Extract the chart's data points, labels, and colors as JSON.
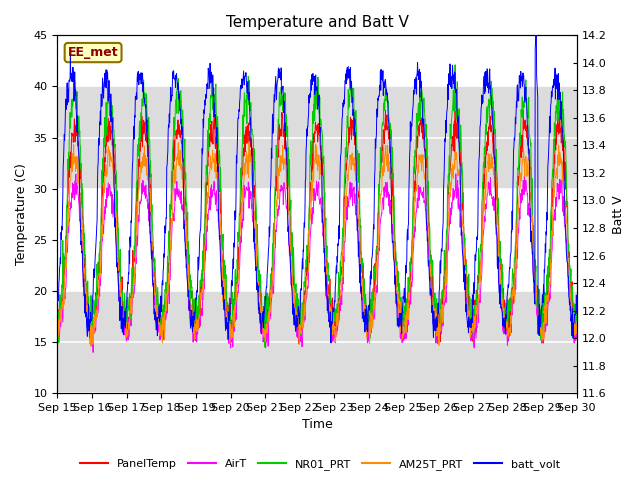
{
  "title": "Temperature and Batt V",
  "xlabel": "Time",
  "ylabel_left": "Temperature (C)",
  "ylabel_right": "Batt V",
  "left_ylim": [
    10,
    45
  ],
  "right_ylim": [
    11.6,
    14.2
  ],
  "left_yticks": [
    10,
    15,
    20,
    25,
    30,
    35,
    40,
    45
  ],
  "right_yticks": [
    11.6,
    11.8,
    12.0,
    12.2,
    12.4,
    12.6,
    12.8,
    13.0,
    13.2,
    13.4,
    13.6,
    13.8,
    14.0,
    14.2
  ],
  "annotation_text": "EE_met",
  "annotation_text_color": "#8B0000",
  "annotation_box_color": "#FFFFC0",
  "annotation_box_edge": "#8B7000",
  "bg_color": "#FFFFFF",
  "plot_bg_color": "#FFFFFF",
  "series_colors": {
    "PanelTemp": "#FF0000",
    "AirT": "#FF00FF",
    "NR01_PRT": "#00CC00",
    "AM25T_PRT": "#FF8C00",
    "batt_volt": "#0000FF"
  },
  "legend_entries": [
    "PanelTemp",
    "AirT",
    "NR01_PRT",
    "AM25T_PRT",
    "batt_volt"
  ],
  "x_tick_labels": [
    "Sep 15",
    "Sep 16",
    "Sep 17",
    "Sep 18",
    "Sep 19",
    "Sep 20",
    "Sep 21",
    "Sep 22",
    "Sep 23",
    "Sep 24",
    "Sep 25",
    "Sep 26",
    "Sep 27",
    "Sep 28",
    "Sep 29",
    "Sep 30"
  ],
  "num_days": 15,
  "points_per_day": 96,
  "seed": 42,
  "figsize": [
    6.4,
    4.8
  ],
  "dpi": 100
}
